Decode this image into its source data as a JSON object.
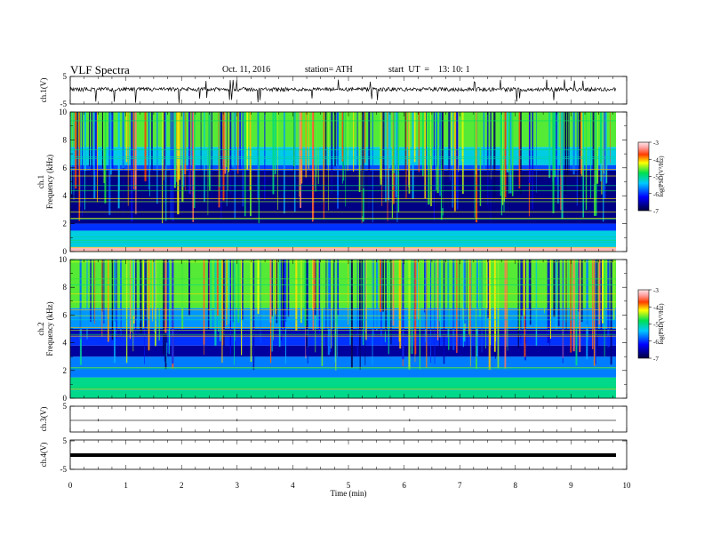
{
  "header": {
    "title": "VLF Spectra",
    "date": "Oct. 11, 2016",
    "station": "station= ATH",
    "start": "start  UT  =    13: 10: 1"
  },
  "chart_data": {
    "type": "heatmap",
    "xlabel": "Time (min)",
    "xlim": [
      0,
      10
    ],
    "x_ticks": [
      "0",
      "1",
      "2",
      "3",
      "4",
      "5",
      "6",
      "7",
      "8",
      "9",
      "10"
    ],
    "panels": [
      {
        "type": "line",
        "ylabel": "ch.1(V)",
        "ylim": [
          -5,
          5
        ],
        "y_ticks": [
          "5",
          "-5"
        ],
        "trace_level": 0.3,
        "note": "waveform trace with frequent negative spikes"
      },
      {
        "type": "heatmap",
        "ylabel": "ch.1 Frequency (kHz)",
        "ylim": [
          0,
          10
        ],
        "y_ticks": [
          "0",
          "2",
          "4",
          "6",
          "8",
          "10"
        ],
        "colorbar": {
          "label": "log(PSD(V²/Hz)",
          "range": [
            -7,
            -3
          ],
          "ticks": [
            "-3",
            "-4",
            "-5",
            "-6",
            "-7"
          ]
        },
        "bands": [
          {
            "from": 0,
            "to": 0.3,
            "level": -3.2
          },
          {
            "from": 0.3,
            "to": 1.5,
            "level": -5.3
          },
          {
            "from": 1.5,
            "to": 2.0,
            "level": -6.0
          },
          {
            "from": 2.0,
            "to": 5.8,
            "level": -6.7
          },
          {
            "from": 5.8,
            "to": 6.2,
            "level": -5.9
          },
          {
            "from": 6.2,
            "to": 7.5,
            "level": -5.3
          },
          {
            "from": 7.5,
            "to": 10,
            "level": -4.6
          }
        ]
      },
      {
        "type": "heatmap",
        "ylabel": "ch.2 Frequency (kHz)",
        "ylim": [
          0,
          10
        ],
        "y_ticks": [
          "0",
          "2",
          "4",
          "6",
          "8",
          "10"
        ],
        "colorbar": {
          "label": "log(PSD(V²/Hz)",
          "range": [
            -7,
            -3
          ],
          "ticks": [
            "-3",
            "-4",
            "-5",
            "-6",
            "-7"
          ]
        },
        "bands": [
          {
            "from": 0,
            "to": 1.5,
            "level": -5.0
          },
          {
            "from": 1.5,
            "to": 3.0,
            "level": -5.7
          },
          {
            "from": 3.0,
            "to": 3.8,
            "level": -6.6
          },
          {
            "from": 3.8,
            "to": 4.5,
            "level": -6.0
          },
          {
            "from": 4.5,
            "to": 5.0,
            "level": -6.5
          },
          {
            "from": 5.0,
            "to": 6.5,
            "level": -5.6
          },
          {
            "from": 6.5,
            "to": 10,
            "level": -4.6
          }
        ]
      },
      {
        "type": "line",
        "ylabel": "ch.3(V)",
        "ylim": [
          -5,
          5
        ],
        "y_ticks": [
          "5"
        ],
        "trace_level": -0.5
      },
      {
        "type": "line",
        "ylabel": "ch.4(V)",
        "ylim": [
          -5,
          5
        ],
        "y_ticks": [
          "5",
          "-5"
        ],
        "trace_level": 0
      }
    ]
  }
}
